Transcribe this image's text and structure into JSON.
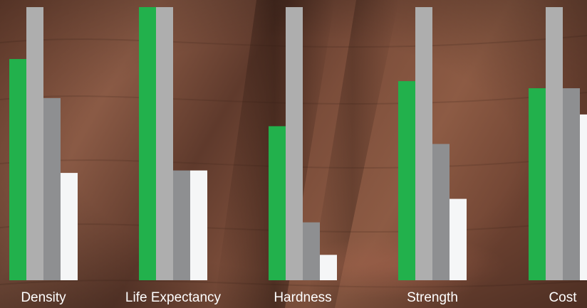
{
  "chart_data": {
    "type": "bar",
    "categories": [
      "Density",
      "Life Expectancy",
      "Hardness",
      "Strength",
      "Cost"
    ],
    "series": [
      {
        "color": "#22b14c",
        "values": [
          0.81,
          1.0,
          0.564,
          0.729,
          0.703
        ]
      },
      {
        "color": "#aeaeae",
        "values": [
          1.0,
          1.0,
          1.0,
          1.0,
          1.0
        ]
      },
      {
        "color": "#8e8f91",
        "values": [
          0.667,
          0.402,
          0.212,
          0.499,
          0.703
        ]
      },
      {
        "color": "#f5f6f7",
        "values": [
          0.393,
          0.402,
          0.093,
          0.298,
          0.607
        ]
      }
    ],
    "ylim": [
      0,
      1
    ],
    "title": "",
    "xlabel": "",
    "ylabel": "",
    "grid": false,
    "legend": "none"
  }
}
